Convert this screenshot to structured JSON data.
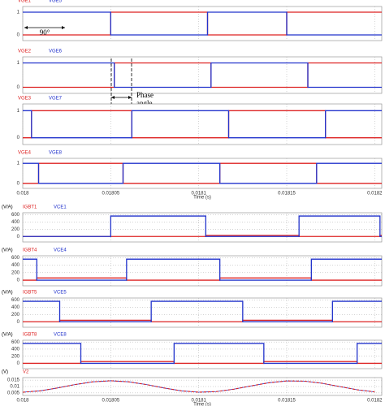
{
  "chart_data": [
    {
      "type": "line",
      "step": true,
      "grid": true,
      "xlim": [
        0.018,
        0.018204
      ],
      "xticks": [
        0.018,
        0.01805,
        0.0181,
        0.01815,
        0.0182
      ],
      "ylim": [
        -0.25,
        1.25
      ],
      "yticks": [
        0,
        1
      ],
      "annotation": [
        "90°"
      ],
      "x": [
        0.018,
        0.01805,
        0.018105,
        0.01815,
        0.018204
      ],
      "series": [
        {
          "name": "VGE1",
          "color": "#dd2222",
          "values": [
            0,
            1,
            0,
            1,
            1
          ]
        },
        {
          "name": "VGE5",
          "color": "#2233cc",
          "values": [
            1,
            0,
            1,
            0,
            0
          ]
        }
      ]
    },
    {
      "type": "line",
      "step": true,
      "grid": true,
      "xlim": [
        0.018,
        0.018204
      ],
      "xticks": [
        0.018,
        0.01805,
        0.0181,
        0.01815,
        0.0182
      ],
      "ylim": [
        -0.25,
        1.25
      ],
      "yticks": [
        0,
        1
      ],
      "annotation": [
        "Phase",
        "angle"
      ],
      "x": [
        0.018,
        0.018052,
        0.018107,
        0.018162,
        0.018204
      ],
      "series": [
        {
          "name": "VGE2",
          "color": "#dd2222",
          "values": [
            0,
            1,
            0,
            1,
            1
          ]
        },
        {
          "name": "VGE6",
          "color": "#2233cc",
          "values": [
            1,
            0,
            1,
            0,
            0
          ]
        }
      ]
    },
    {
      "type": "line",
      "step": true,
      "grid": true,
      "xlim": [
        0.018,
        0.018204
      ],
      "xticks": [
        0.018,
        0.01805,
        0.0181,
        0.01815,
        0.0182
      ],
      "ylim": [
        -0.25,
        1.25
      ],
      "yticks": [
        0,
        1
      ],
      "x": [
        0.018,
        0.018005,
        0.018062,
        0.018117,
        0.018172,
        0.018204
      ],
      "series": [
        {
          "name": "VGE3",
          "color": "#dd2222",
          "values": [
            0,
            1,
            0,
            1,
            0,
            0
          ]
        },
        {
          "name": "VGE7",
          "color": "#2233cc",
          "values": [
            1,
            0,
            1,
            0,
            1,
            1
          ]
        }
      ]
    },
    {
      "type": "line",
      "step": true,
      "grid": true,
      "xlim": [
        0.018,
        0.018204
      ],
      "xticks": [
        0.018,
        0.01805,
        0.0181,
        0.01815,
        0.0182
      ],
      "xlabel": "Time (s)",
      "ylim": [
        -0.25,
        1.25
      ],
      "yticks": [
        0,
        1
      ],
      "x": [
        0.018,
        0.018009,
        0.018057,
        0.018112,
        0.018167,
        0.018204
      ],
      "series": [
        {
          "name": "VGE4",
          "color": "#dd2222",
          "values": [
            0,
            1,
            0,
            1,
            0,
            0
          ]
        },
        {
          "name": "VGE8",
          "color": "#2233cc",
          "values": [
            1,
            0,
            1,
            0,
            1,
            1
          ]
        }
      ]
    },
    {
      "type": "line",
      "step": true,
      "grid": true,
      "xlim": [
        0.018,
        0.018204
      ],
      "xticks": [
        0.018,
        0.01805,
        0.0181,
        0.01815,
        0.0182
      ],
      "ylabel": "(V/A)",
      "ylim": [
        -150,
        650
      ],
      "yticks": [
        0,
        200,
        400,
        600
      ],
      "x": [
        0.018,
        0.01805,
        0.018104,
        0.018157,
        0.018203,
        0.018204
      ],
      "series": [
        {
          "name": "IGBT1",
          "color": "#dd2222",
          "values": [
            0,
            0,
            30,
            0,
            30,
            30
          ]
        },
        {
          "name": "VCE1",
          "color": "#2233cc",
          "values": [
            0,
            560,
            0,
            560,
            0,
            0
          ]
        }
      ]
    },
    {
      "type": "line",
      "step": true,
      "grid": true,
      "xlim": [
        0.018,
        0.018204
      ],
      "xticks": [
        0.018,
        0.01805,
        0.0181,
        0.01815,
        0.0182
      ],
      "ylabel": "(V/A)",
      "ylim": [
        -150,
        650
      ],
      "yticks": [
        0,
        200,
        400,
        600
      ],
      "x": [
        0.018,
        0.018008,
        0.018059,
        0.018112,
        0.018164,
        0.018204
      ],
      "series": [
        {
          "name": "IGBT4",
          "color": "#dd2222",
          "values": [
            0,
            60,
            0,
            60,
            0,
            0
          ]
        },
        {
          "name": "VCE4",
          "color": "#2233cc",
          "values": [
            560,
            0,
            560,
            0,
            560,
            560
          ]
        }
      ]
    },
    {
      "type": "line",
      "step": true,
      "grid": true,
      "xlim": [
        0.018,
        0.018204
      ],
      "xticks": [
        0.018,
        0.01805,
        0.0181,
        0.01815,
        0.0182
      ],
      "ylabel": "(V/A)",
      "ylim": [
        -150,
        650
      ],
      "yticks": [
        0,
        200,
        400,
        600
      ],
      "x": [
        0.018,
        0.018021,
        0.018073,
        0.018125,
        0.018176,
        0.018204
      ],
      "series": [
        {
          "name": "IGBT5",
          "color": "#dd2222",
          "values": [
            0,
            40,
            0,
            40,
            0,
            0
          ]
        },
        {
          "name": "VCE5",
          "color": "#2233cc",
          "values": [
            560,
            0,
            560,
            0,
            560,
            560
          ]
        }
      ]
    },
    {
      "type": "line",
      "step": true,
      "grid": true,
      "xlim": [
        0.018,
        0.018204
      ],
      "xticks": [
        0.018,
        0.01805,
        0.0181,
        0.01815,
        0.0182
      ],
      "ylabel": "(V/A)",
      "ylim": [
        -150,
        650
      ],
      "yticks": [
        0,
        200,
        400,
        600
      ],
      "x": [
        0.018,
        0.018033,
        0.018086,
        0.018137,
        0.01819,
        0.018204
      ],
      "series": [
        {
          "name": "IGBT8",
          "color": "#dd2222",
          "values": [
            0,
            50,
            0,
            50,
            0,
            0
          ]
        },
        {
          "name": "VCE8",
          "color": "#2233cc",
          "values": [
            560,
            0,
            560,
            0,
            560,
            560
          ]
        }
      ]
    },
    {
      "type": "line",
      "step": false,
      "grid": true,
      "dashed": true,
      "xlim": [
        0.018,
        0.018204
      ],
      "xticks": [
        0.018,
        0.01805,
        0.0181,
        0.01815,
        0.0182
      ],
      "xlabel": "Time (s)",
      "ylabel": "(V)",
      "ylim": [
        0.003,
        0.017
      ],
      "yticks": [
        0.005,
        0.01,
        0.015
      ],
      "x": [
        0.018,
        0.01801,
        0.01802,
        0.01803,
        0.01804,
        0.01805,
        0.01806,
        0.01807,
        0.01808,
        0.01809,
        0.0181,
        0.01811,
        0.01812,
        0.01813,
        0.01814,
        0.01815,
        0.01816,
        0.01817,
        0.01818,
        0.01819,
        0.0182
      ],
      "series": [
        {
          "name": "V2",
          "color": "#dd2222",
          "values": [
            0.00554,
            0.00663,
            0.00892,
            0.0116,
            0.0137,
            0.0145,
            0.0137,
            0.0116,
            0.00892,
            0.00663,
            0.00554,
            0.00602,
            0.00791,
            0.01054,
            0.01298,
            0.01437,
            0.01421,
            0.01256,
            0.01,
            0.00744,
            0.00579
          ]
        }
      ]
    }
  ]
}
